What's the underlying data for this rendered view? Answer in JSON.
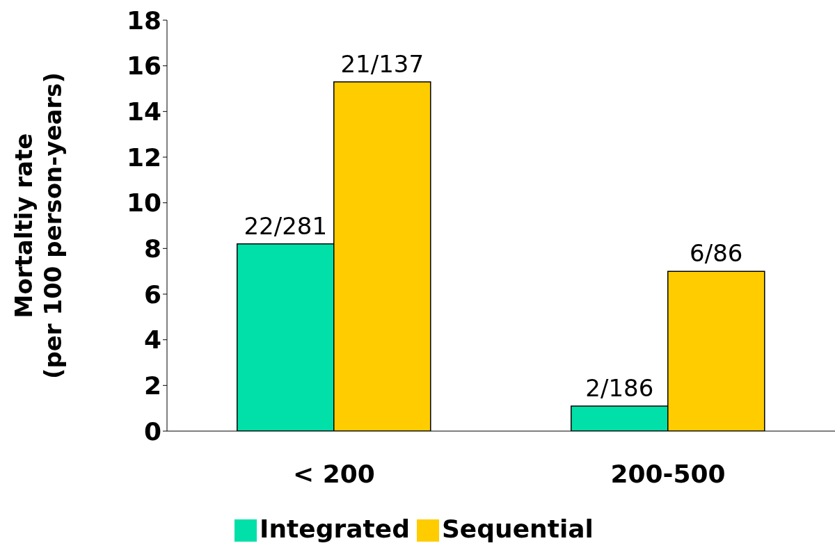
{
  "chart_data": {
    "type": "bar",
    "ylabel": "Mortaltiy rate\n(per 100 person-years)",
    "categories": [
      "< 200",
      "200-500"
    ],
    "series": [
      {
        "name": "Integrated",
        "color": "#00e0a8",
        "values": [
          8.2,
          1.1
        ],
        "value_labels": [
          "22/281",
          "2/186"
        ]
      },
      {
        "name": "Sequential",
        "color": "#ffcc00",
        "values": [
          15.3,
          7.0
        ],
        "value_labels": [
          "21/137",
          "6/86"
        ]
      }
    ],
    "ylim": [
      0,
      18
    ],
    "yticks": [
      0,
      2,
      4,
      6,
      8,
      10,
      12,
      14,
      16,
      18
    ],
    "grid": false,
    "legend": "bottom"
  }
}
